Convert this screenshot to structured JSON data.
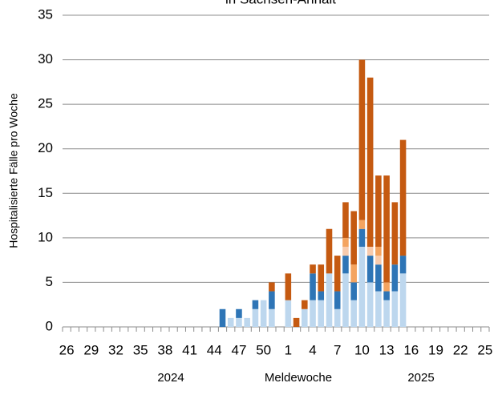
{
  "chart_data": {
    "type": "stacked_bar",
    "title": "in Sachsen-Anhalt",
    "x_label": "Meldewoche",
    "y_label": "Hospitalisierte Fälle pro Woche",
    "year_labels": [
      "2024",
      "2025"
    ],
    "categories": [
      "26",
      null,
      null,
      "29",
      null,
      null,
      "32",
      null,
      null,
      "35",
      null,
      null,
      "38",
      null,
      null,
      "41",
      null,
      null,
      "44",
      null,
      null,
      "47",
      null,
      null,
      "50",
      null,
      null,
      "1",
      null,
      null,
      "4",
      null,
      null,
      "7",
      null,
      null,
      "10",
      null,
      null,
      "13",
      null,
      null,
      "16",
      null,
      null,
      "19",
      null,
      null,
      "22",
      null,
      null,
      "25"
    ],
    "series": [
      {
        "color": "#bdd7ee",
        "values": [
          0,
          0,
          0,
          0,
          0,
          0,
          0,
          0,
          0,
          0,
          0,
          0,
          0,
          0,
          0,
          0,
          0,
          0,
          0,
          0,
          1,
          1,
          1,
          2,
          3,
          2,
          0,
          3,
          0,
          2,
          3,
          3,
          6,
          2,
          6,
          3,
          9,
          5,
          4,
          3,
          4,
          6,
          0,
          0,
          0,
          0,
          0,
          0,
          0,
          0,
          0,
          0
        ]
      },
      {
        "color": "#2e75b6",
        "values": [
          0,
          0,
          0,
          0,
          0,
          0,
          0,
          0,
          0,
          0,
          0,
          0,
          0,
          0,
          0,
          0,
          0,
          0,
          0,
          2,
          0,
          1,
          0,
          1,
          0,
          2,
          0,
          0,
          0,
          0,
          3,
          1,
          0,
          2,
          2,
          2,
          2,
          3,
          3,
          1,
          3,
          2,
          0,
          0,
          0,
          0,
          0,
          0,
          0,
          0,
          0,
          0
        ]
      },
      {
        "color": "#f8cbad",
        "values": [
          0,
          0,
          0,
          0,
          0,
          0,
          0,
          0,
          0,
          0,
          0,
          0,
          0,
          0,
          0,
          0,
          0,
          0,
          0,
          0,
          0,
          0,
          0,
          0,
          0,
          0,
          0,
          0,
          0,
          0,
          0,
          0,
          0,
          0,
          1,
          0,
          0,
          1,
          1,
          0,
          0,
          0,
          0,
          0,
          0,
          0,
          0,
          0,
          0,
          0,
          0,
          0
        ]
      },
      {
        "color": "#f4a460",
        "values": [
          0,
          0,
          0,
          0,
          0,
          0,
          0,
          0,
          0,
          0,
          0,
          0,
          0,
          0,
          0,
          0,
          0,
          0,
          0,
          0,
          0,
          0,
          0,
          0,
          0,
          0,
          0,
          0,
          0,
          0,
          0,
          0,
          0,
          0,
          1,
          2,
          1,
          0,
          1,
          1,
          0,
          0,
          0,
          0,
          0,
          0,
          0,
          0,
          0,
          0,
          0,
          0
        ]
      },
      {
        "color": "#c55a11",
        "values": [
          0,
          0,
          0,
          0,
          0,
          0,
          0,
          0,
          0,
          0,
          0,
          0,
          0,
          0,
          0,
          0,
          0,
          0,
          0,
          0,
          0,
          0,
          0,
          0,
          0,
          1,
          0,
          3,
          1,
          1,
          1,
          3,
          5,
          4,
          4,
          6,
          18,
          19,
          8,
          12,
          7,
          13,
          0,
          0,
          0,
          0,
          0,
          0,
          0,
          0,
          0,
          0
        ]
      }
    ],
    "ylim": [
      0,
      35
    ],
    "yticks": [
      0,
      5,
      10,
      15,
      20,
      25,
      30,
      35
    ],
    "grid": true
  }
}
